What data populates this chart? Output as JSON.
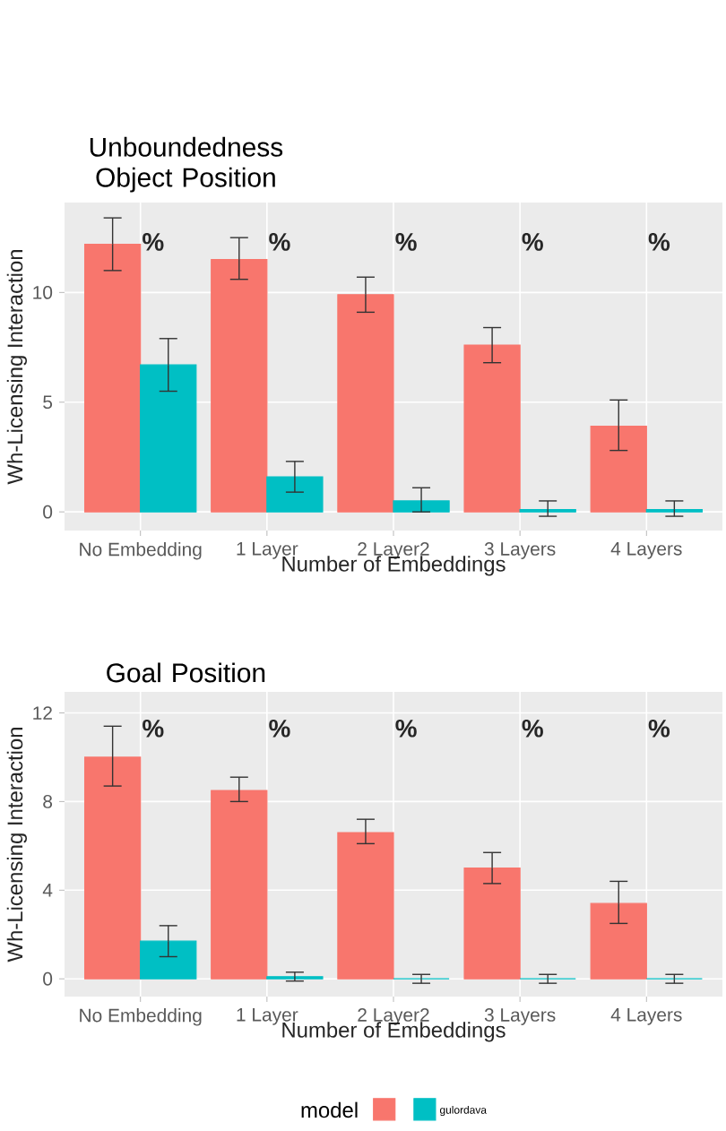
{
  "chart_data": [
    {
      "type": "bar",
      "title": "Unboundedness Object Position",
      "xlabel": "Number of Embeddings",
      "ylabel": "Wh-Licensing Interaction",
      "categories": [
        "No Embedding",
        "1 Layer",
        "2 Layer2",
        "3 Layers",
        "4 Layers"
      ],
      "series": [
        {
          "color": "#f8766d",
          "values": [
            12.2,
            11.5,
            9.9,
            7.6,
            3.9
          ],
          "errors": [
            [
              11.0,
              13.4
            ],
            [
              10.6,
              12.5
            ],
            [
              9.1,
              10.7
            ],
            [
              6.8,
              8.4
            ],
            [
              2.8,
              5.1
            ]
          ]
        },
        {
          "color": "#00bfc4",
          "values": [
            6.7,
            1.6,
            0.5,
            0.1,
            0.1
          ],
          "errors": [
            [
              5.5,
              7.9
            ],
            [
              0.9,
              2.3
            ],
            [
              0.0,
              1.1
            ],
            [
              -0.2,
              0.5
            ],
            [
              -0.2,
              0.5
            ]
          ]
        }
      ],
      "ylim": [
        -0.85,
        14.1
      ],
      "yticks": [
        0,
        5,
        10
      ],
      "grid": true,
      "annotations": [
        "%",
        "%",
        "%",
        "%",
        "%"
      ]
    },
    {
      "type": "bar",
      "title": "Goal Position",
      "xlabel": "Number of Embeddings",
      "ylabel": "Wh-Licensing Interaction",
      "legend_title": "model",
      "categories": [
        "No Embedding",
        "1 Layer",
        "2 Layer2",
        "3 Layers",
        "4 Layers"
      ],
      "series": [
        {
          "color": "#f8766d",
          "values": [
            10.0,
            8.5,
            6.6,
            5.0,
            3.4
          ],
          "errors": [
            [
              8.7,
              11.4
            ],
            [
              8.0,
              9.1
            ],
            [
              6.1,
              7.2
            ],
            [
              4.3,
              5.7
            ],
            [
              2.5,
              4.4
            ]
          ]
        },
        {
          "name": "gulordava",
          "color": "#00bfc4",
          "values": [
            1.7,
            0.1,
            0,
            0,
            0
          ],
          "errors": [
            [
              1.0,
              2.4
            ],
            [
              -0.1,
              0.3
            ],
            [
              -0.2,
              0.2
            ],
            [
              -0.2,
              0.2
            ],
            [
              -0.2,
              0.2
            ]
          ]
        }
      ],
      "ylim": [
        -0.8,
        12.95
      ],
      "yticks": [
        0,
        4,
        8,
        12
      ],
      "grid": true,
      "legend": "bottom",
      "annotations": [
        "%",
        "%",
        "%",
        "%",
        "%"
      ]
    }
  ]
}
